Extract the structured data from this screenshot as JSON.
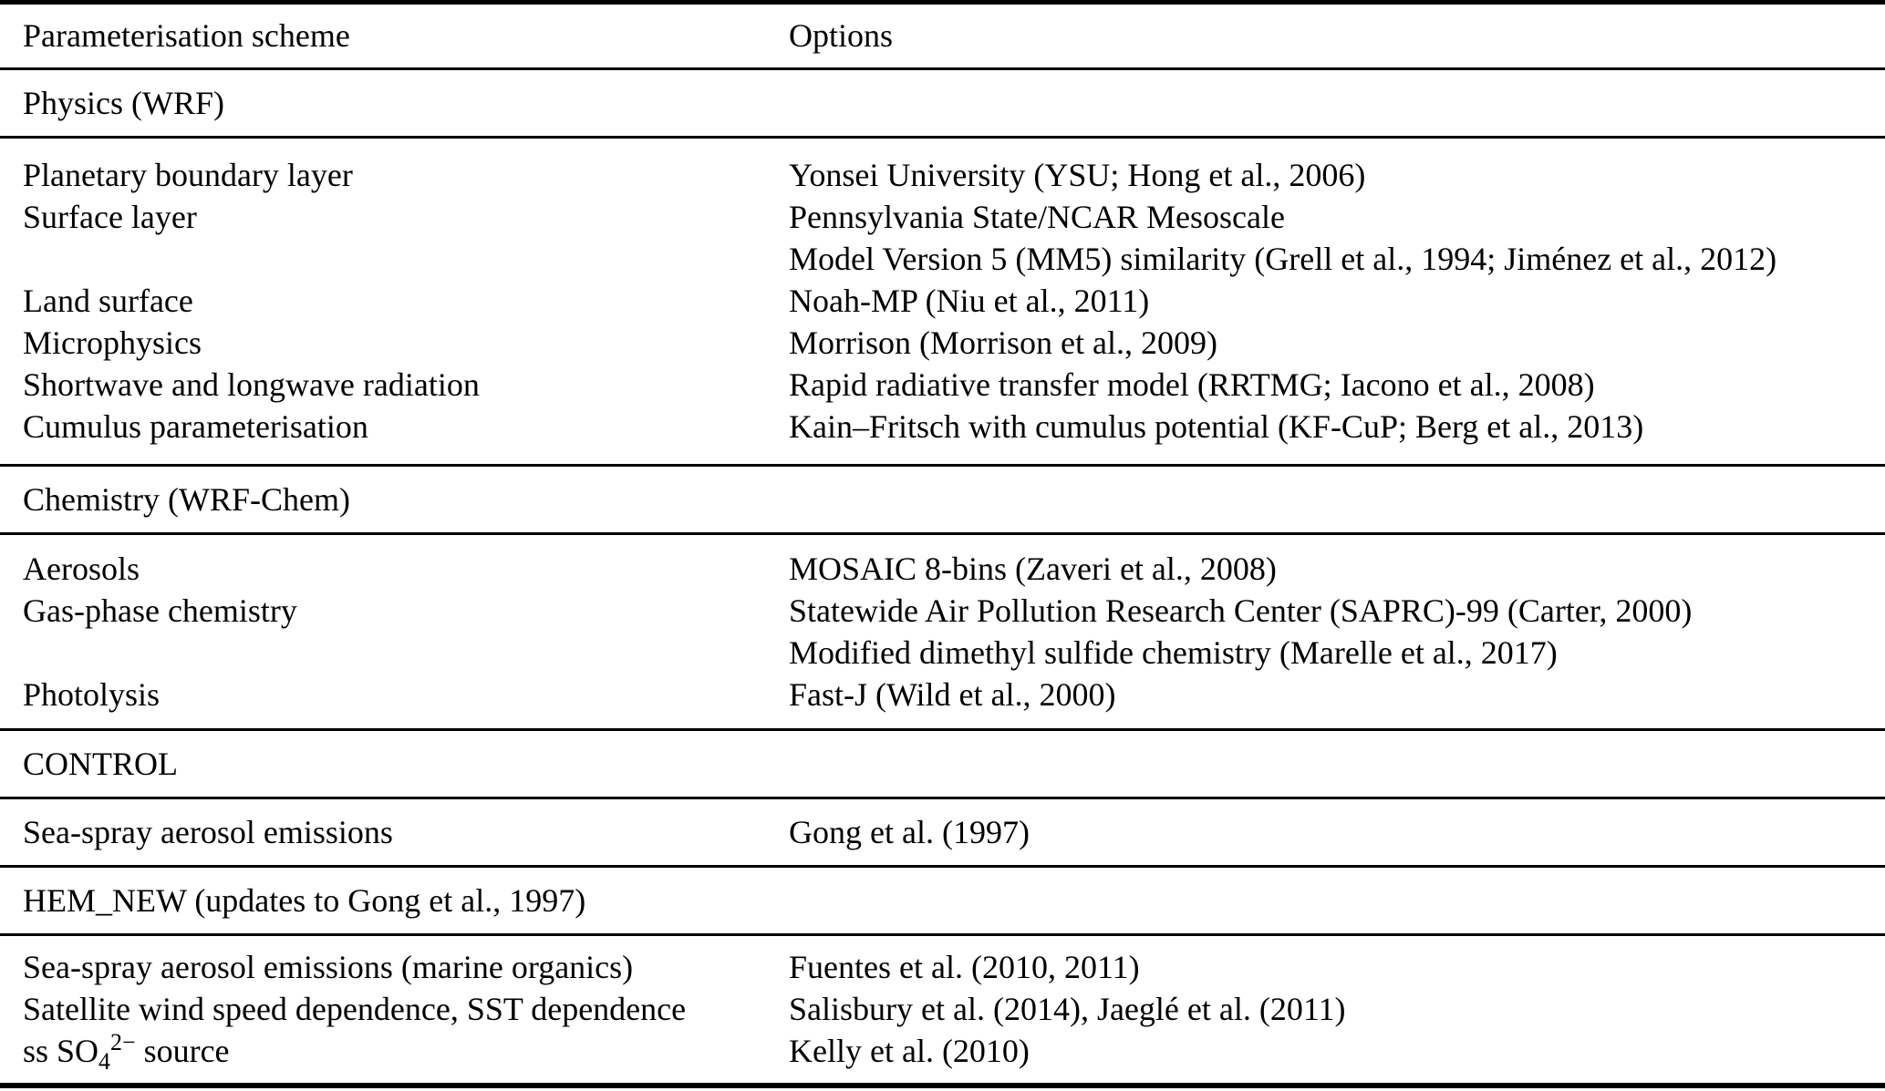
{
  "table": {
    "columns": {
      "scheme": "Parameterisation scheme",
      "options": "Options"
    },
    "text_color": "#000000",
    "rule_color": "#000000",
    "background_color": "#ffffff",
    "sections": [
      {
        "title": "Physics (WRF)",
        "rows": [
          {
            "scheme": "Planetary boundary layer",
            "option": "Yonsei University (YSU; Hong et al., 2006)"
          },
          {
            "scheme": "Surface layer",
            "option": "Pennsylvania State/NCAR Mesoscale"
          },
          {
            "scheme": "",
            "option": "Model Version 5 (MM5) similarity (Grell et al., 1994; Jiménez et al., 2012)"
          },
          {
            "scheme": "Land surface",
            "option": "Noah-MP (Niu et al., 2011)"
          },
          {
            "scheme": "Microphysics",
            "option": "Morrison (Morrison et al., 2009)"
          },
          {
            "scheme": "Shortwave and longwave radiation",
            "option": "Rapid radiative transfer model (RRTMG; Iacono et al., 2008)"
          },
          {
            "scheme": "Cumulus parameterisation",
            "option": "Kain–Fritsch with cumulus potential (KF-CuP; Berg et al., 2013)"
          }
        ]
      },
      {
        "title": "Chemistry (WRF-Chem)",
        "rows": [
          {
            "scheme": "Aerosols",
            "option": "MOSAIC 8-bins (Zaveri et al., 2008)"
          },
          {
            "scheme": "Gas-phase chemistry",
            "option": "Statewide Air Pollution Research Center (SAPRC)-99 (Carter, 2000)"
          },
          {
            "scheme": "",
            "option": "Modified dimethyl sulfide chemistry (Marelle et al., 2017)"
          },
          {
            "scheme": "Photolysis",
            "option": "Fast-J (Wild et al., 2000)"
          }
        ]
      },
      {
        "title": "CONTROL",
        "rows": [
          {
            "scheme": "Sea-spray aerosol emissions",
            "option": "Gong et al. (1997)"
          }
        ]
      },
      {
        "title": "HEM_NEW (updates to Gong et al., 1997)",
        "rows": [
          {
            "scheme": "Sea-spray aerosol emissions (marine organics)",
            "option": "Fuentes et al. (2010, 2011)"
          },
          {
            "scheme": "Satellite wind speed dependence, SST dependence",
            "option": "Salisbury et al. (2014), Jaeglé et al. (2011)"
          },
          {
            "scheme_rich": [
              [
                "text",
                "ss SO"
              ],
              [
                "sub",
                "4"
              ],
              [
                "sup",
                "2−"
              ],
              [
                "text",
                " source"
              ]
            ],
            "option": "Kelly et al. (2010)"
          }
        ]
      }
    ]
  }
}
